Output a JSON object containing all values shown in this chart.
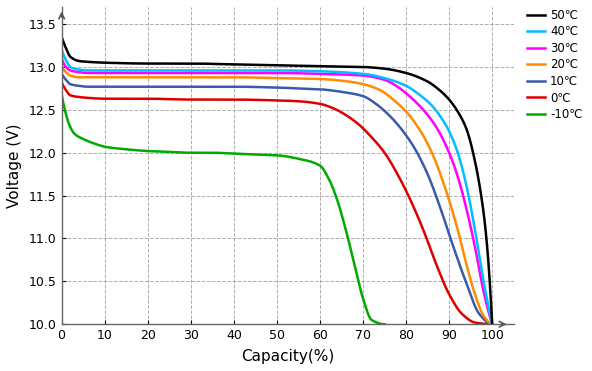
{
  "title": "",
  "xlabel": "Capacity(%)",
  "ylabel": "Voltage (V)",
  "xlim": [
    0,
    105
  ],
  "ylim": [
    10.0,
    13.7
  ],
  "yticks": [
    10.0,
    10.5,
    11.0,
    11.5,
    12.0,
    12.5,
    13.0,
    13.5
  ],
  "xticks": [
    0,
    10,
    20,
    30,
    40,
    50,
    60,
    70,
    80,
    90,
    100
  ],
  "curves": [
    {
      "label": "50℃",
      "color": "#000000",
      "x": [
        0,
        1,
        2,
        4,
        6,
        10,
        20,
        30,
        40,
        50,
        60,
        70,
        75,
        80,
        85,
        88,
        90,
        92,
        94,
        96,
        98,
        99,
        100
      ],
      "y": [
        13.35,
        13.22,
        13.12,
        13.07,
        13.06,
        13.05,
        13.04,
        13.04,
        13.03,
        13.02,
        13.01,
        13.0,
        12.98,
        12.93,
        12.83,
        12.72,
        12.62,
        12.48,
        12.28,
        11.9,
        11.3,
        10.8,
        10.0
      ]
    },
    {
      "label": "40℃",
      "color": "#00bfff",
      "x": [
        0,
        1,
        2,
        4,
        6,
        10,
        20,
        30,
        40,
        50,
        60,
        70,
        75,
        80,
        83,
        86,
        88,
        90,
        92,
        94,
        96,
        98,
        100
      ],
      "y": [
        13.2,
        13.08,
        13.0,
        12.97,
        12.96,
        12.96,
        12.96,
        12.96,
        12.96,
        12.96,
        12.95,
        12.92,
        12.87,
        12.78,
        12.68,
        12.55,
        12.42,
        12.25,
        12.0,
        11.62,
        11.1,
        10.5,
        10.0
      ]
    },
    {
      "label": "30℃",
      "color": "#ff00ff",
      "x": [
        0,
        1,
        2,
        4,
        6,
        10,
        20,
        30,
        40,
        50,
        60,
        70,
        75,
        78,
        81,
        84,
        87,
        90,
        92,
        94,
        96,
        98,
        100
      ],
      "y": [
        13.1,
        13.0,
        12.96,
        12.94,
        12.93,
        12.93,
        12.93,
        12.93,
        12.93,
        12.93,
        12.92,
        12.9,
        12.85,
        12.77,
        12.65,
        12.5,
        12.3,
        12.0,
        11.72,
        11.35,
        10.9,
        10.38,
        10.0
      ]
    },
    {
      "label": "20℃",
      "color": "#ff8c00",
      "x": [
        0,
        1,
        2,
        4,
        6,
        10,
        20,
        30,
        40,
        50,
        60,
        65,
        70,
        74,
        77,
        80,
        83,
        86,
        89,
        92,
        94,
        96,
        98,
        100
      ],
      "y": [
        13.0,
        12.94,
        12.9,
        12.88,
        12.88,
        12.88,
        12.88,
        12.88,
        12.88,
        12.87,
        12.86,
        12.84,
        12.8,
        12.73,
        12.62,
        12.48,
        12.28,
        12.0,
        11.6,
        11.1,
        10.7,
        10.35,
        10.1,
        10.0
      ]
    },
    {
      "label": "10℃",
      "color": "#3a5aaa",
      "x": [
        0,
        1,
        2,
        4,
        6,
        10,
        20,
        30,
        40,
        50,
        55,
        60,
        65,
        70,
        73,
        76,
        79,
        82,
        85,
        88,
        91,
        94,
        97,
        100
      ],
      "y": [
        12.92,
        12.85,
        12.8,
        12.78,
        12.77,
        12.77,
        12.77,
        12.77,
        12.77,
        12.76,
        12.75,
        12.74,
        12.71,
        12.66,
        12.57,
        12.44,
        12.27,
        12.05,
        11.75,
        11.35,
        10.9,
        10.48,
        10.12,
        10.0
      ]
    },
    {
      "label": "0℃",
      "color": "#dd0000",
      "x": [
        0,
        1,
        2,
        4,
        6,
        10,
        20,
        30,
        40,
        50,
        55,
        60,
        63,
        66,
        69,
        72,
        75,
        78,
        81,
        84,
        87,
        90,
        93,
        96,
        100
      ],
      "y": [
        12.82,
        12.73,
        12.67,
        12.65,
        12.64,
        12.63,
        12.63,
        12.62,
        12.62,
        12.61,
        12.6,
        12.57,
        12.52,
        12.44,
        12.33,
        12.18,
        12.0,
        11.75,
        11.45,
        11.1,
        10.7,
        10.35,
        10.12,
        10.02,
        10.0
      ]
    },
    {
      "label": "-10℃",
      "color": "#00aa00",
      "x": [
        0,
        1,
        2,
        3,
        5,
        8,
        10,
        15,
        20,
        25,
        30,
        35,
        40,
        45,
        50,
        55,
        60,
        62,
        64,
        66,
        68,
        70,
        72,
        75
      ],
      "y": [
        12.68,
        12.45,
        12.3,
        12.22,
        12.16,
        12.1,
        12.07,
        12.04,
        12.02,
        12.01,
        12.0,
        12.0,
        11.99,
        11.98,
        11.97,
        11.93,
        11.85,
        11.7,
        11.45,
        11.1,
        10.7,
        10.3,
        10.05,
        10.0
      ]
    }
  ],
  "background_color": "#ffffff",
  "grid_color": "#999999",
  "grid_style": "--",
  "grid_alpha": 0.8
}
